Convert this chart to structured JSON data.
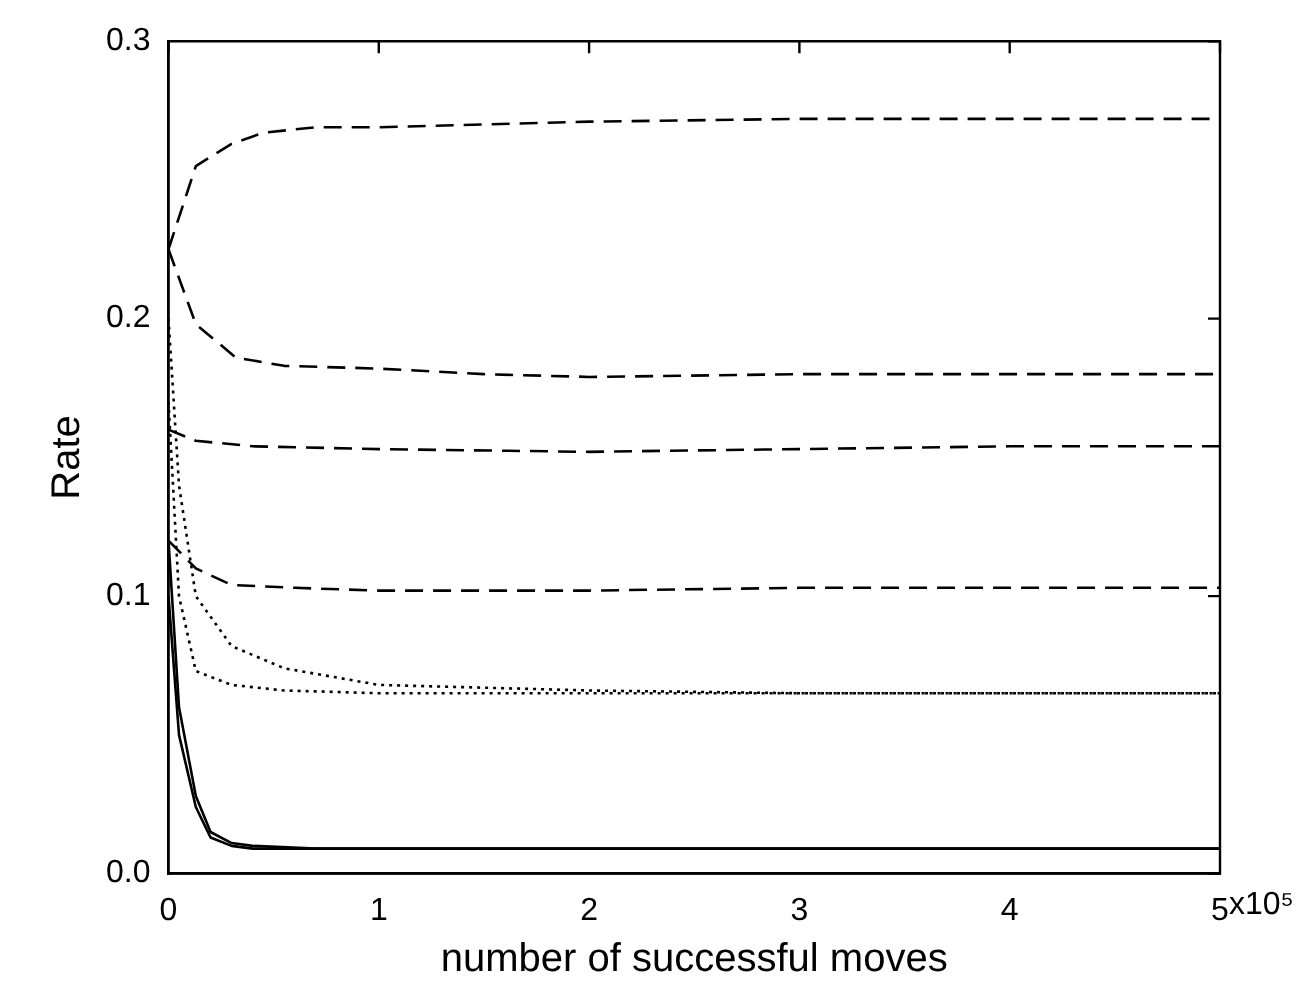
{
  "chart_data": {
    "type": "line",
    "xlabel": "number of successful moves",
    "ylabel": "Rate",
    "xlim": [
      0,
      5
    ],
    "xticks": [
      0,
      1,
      2,
      3,
      4,
      5
    ],
    "annotations": [
      "x10⁵"
    ],
    "ylim": [
      0,
      0.3
    ],
    "yticks": [
      {
        "value": 0,
        "label": "0.0"
      },
      0.1,
      0.2,
      0.3
    ],
    "grid": false,
    "legend": false,
    "marker": "none",
    "series": [
      {
        "color": "#000000",
        "line_style": "dashed",
        "x": [
          0,
          0.13,
          0.3,
          0.45,
          0.7,
          1,
          1.5,
          2,
          3,
          4,
          5
        ],
        "values": [
          0.225,
          0.255,
          0.263,
          0.267,
          0.269,
          0.269,
          0.27,
          0.271,
          0.272,
          0.272,
          0.272
        ]
      },
      {
        "color": "#000000",
        "line_style": "dashed",
        "x": [
          0,
          0.13,
          0.32,
          0.55,
          1,
          1.5,
          2,
          3,
          4,
          5
        ],
        "values": [
          0.225,
          0.198,
          0.186,
          0.183,
          0.182,
          0.18,
          0.179,
          0.18,
          0.18,
          0.18
        ]
      },
      {
        "color": "#000000",
        "line_style": "dashed",
        "x": [
          0,
          0.13,
          0.4,
          1,
          2,
          3,
          4,
          5
        ],
        "values": [
          0.16,
          0.156,
          0.154,
          0.153,
          0.152,
          0.153,
          0.154,
          0.154
        ]
      },
      {
        "color": "#000000",
        "line_style": "dashed",
        "x": [
          0,
          0.13,
          0.3,
          0.6,
          1,
          2,
          3,
          4,
          5
        ],
        "values": [
          0.12,
          0.11,
          0.104,
          0.103,
          0.102,
          0.102,
          0.103,
          0.103,
          0.103
        ]
      },
      {
        "color": "#000000",
        "line_style": "dotted",
        "x": [
          0,
          0.05,
          0.13,
          0.3,
          0.55,
          1,
          2,
          3,
          4,
          5
        ],
        "values": [
          0.2,
          0.14,
          0.1,
          0.082,
          0.074,
          0.068,
          0.066,
          0.065,
          0.065,
          0.065
        ]
      },
      {
        "color": "#000000",
        "line_style": "dotted",
        "x": [
          0,
          0.05,
          0.13,
          0.3,
          0.55,
          1,
          2,
          3,
          4,
          5
        ],
        "values": [
          0.17,
          0.1,
          0.073,
          0.068,
          0.066,
          0.065,
          0.065,
          0.065,
          0.065,
          0.065
        ]
      },
      {
        "color": "#000000",
        "line_style": "solid",
        "x": [
          0,
          0.05,
          0.13,
          0.2,
          0.3,
          0.4,
          0.7,
          1,
          2,
          3,
          4,
          5
        ],
        "values": [
          0.12,
          0.06,
          0.028,
          0.015,
          0.011,
          0.01,
          0.009,
          0.009,
          0.009,
          0.009,
          0.009,
          0.009
        ]
      },
      {
        "color": "#000000",
        "line_style": "solid",
        "x": [
          0,
          0.05,
          0.13,
          0.2,
          0.3,
          0.4,
          0.7,
          1,
          2,
          3,
          4,
          5
        ],
        "values": [
          0.1,
          0.05,
          0.024,
          0.013,
          0.01,
          0.009,
          0.009,
          0.009,
          0.009,
          0.009,
          0.009,
          0.009
        ]
      }
    ]
  }
}
